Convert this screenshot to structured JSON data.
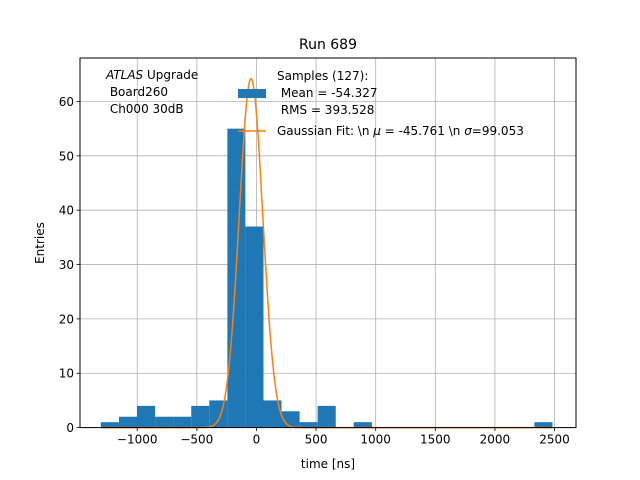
{
  "chart_data": {
    "type": "histogram",
    "title": "Run 689",
    "xlabel": "time [ns]",
    "ylabel": "Entries",
    "xlim": [
      -1480,
      2680
    ],
    "ylim": [
      0,
      68
    ],
    "xticks": [
      -1000,
      -500,
      0,
      500,
      1000,
      1500,
      2000,
      2500
    ],
    "xtick_labels": [
      "−1000",
      "−500",
      "0",
      "500",
      "1000",
      "1500",
      "2000",
      "2500"
    ],
    "yticks": [
      0,
      10,
      20,
      30,
      40,
      50,
      60
    ],
    "grid": true,
    "annotation": {
      "line1_italic": "ATLAS",
      "line1_rest": " Upgrade",
      "line2": " Board260",
      "line3": " Ch000 30dB"
    },
    "histogram": {
      "name_lines": [
        "Samples (127):",
        " Mean = -54.327",
        " RMS = 393.528"
      ],
      "color": "#1f77b4",
      "bin_edges": [
        -1305,
        -1153,
        -1002,
        -850,
        -699,
        -547,
        -396,
        -244,
        -93,
        59,
        210,
        362,
        513,
        665,
        816,
        968,
        1119,
        1271,
        1422,
        1574,
        1725,
        1877,
        2028,
        2180,
        2331,
        2483
      ],
      "counts": [
        1,
        2,
        4,
        2,
        2,
        4,
        5,
        55,
        37,
        5,
        3,
        1,
        4,
        0,
        1,
        0,
        0,
        0,
        0,
        0,
        0,
        0,
        0,
        0,
        1
      ]
    },
    "fit": {
      "name_prefix": "Gaussian Fit: \\n ",
      "mu_symbol": "μ",
      "mu_text": " = -45.761 \\n ",
      "sigma_symbol": "σ",
      "sigma_text": "=99.053",
      "color": "#ff7f0e",
      "mu": -45.761,
      "sigma": 99.053,
      "amplitude": 64.2,
      "x_range": [
        -1305,
        2483
      ]
    },
    "legend_placement": "upper center"
  }
}
